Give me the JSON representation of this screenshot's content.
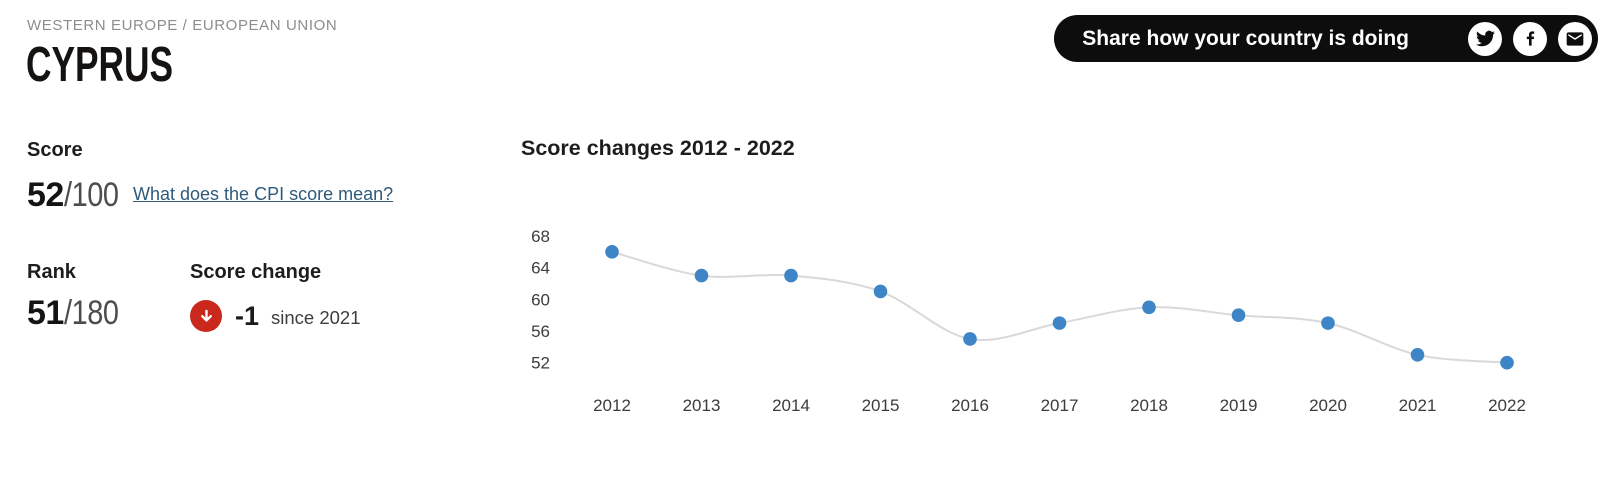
{
  "breadcrumb": "WESTERN EUROPE / EUROPEAN UNION",
  "title": "CYPRUS",
  "share": {
    "label": "Share how your country is doing",
    "icons": [
      "twitter-icon",
      "facebook-icon",
      "email-icon"
    ]
  },
  "score": {
    "heading": "Score",
    "value": "52",
    "denominator": "/100",
    "link_text": "What does the CPI score mean?"
  },
  "rank": {
    "heading": "Rank",
    "value": "51",
    "denominator": "/180"
  },
  "score_change": {
    "heading": "Score change",
    "delta": "-1",
    "caption": "since 2021",
    "direction": "down"
  },
  "chart_data": {
    "type": "line",
    "title": "Score changes 2012 - 2022",
    "x": [
      "2012",
      "2013",
      "2014",
      "2015",
      "2016",
      "2017",
      "2018",
      "2019",
      "2020",
      "2021",
      "2022"
    ],
    "values": [
      66,
      63,
      63,
      61,
      55,
      57,
      59,
      58,
      57,
      53,
      52
    ],
    "yticks": [
      68,
      64,
      60,
      56,
      52
    ],
    "ylim": [
      50,
      70
    ],
    "xlabel": "",
    "ylabel": "",
    "grid": false,
    "legend": "none",
    "point_color": "#3d85c6",
    "line_color": "#d9d9d9"
  },
  "colors": {
    "accent_blue": "#3d85c6",
    "link_blue": "#2e5a7c",
    "badge_red": "#c9281c",
    "pill_black": "#0d0d0d",
    "muted_gray": "#8d8d8d"
  }
}
